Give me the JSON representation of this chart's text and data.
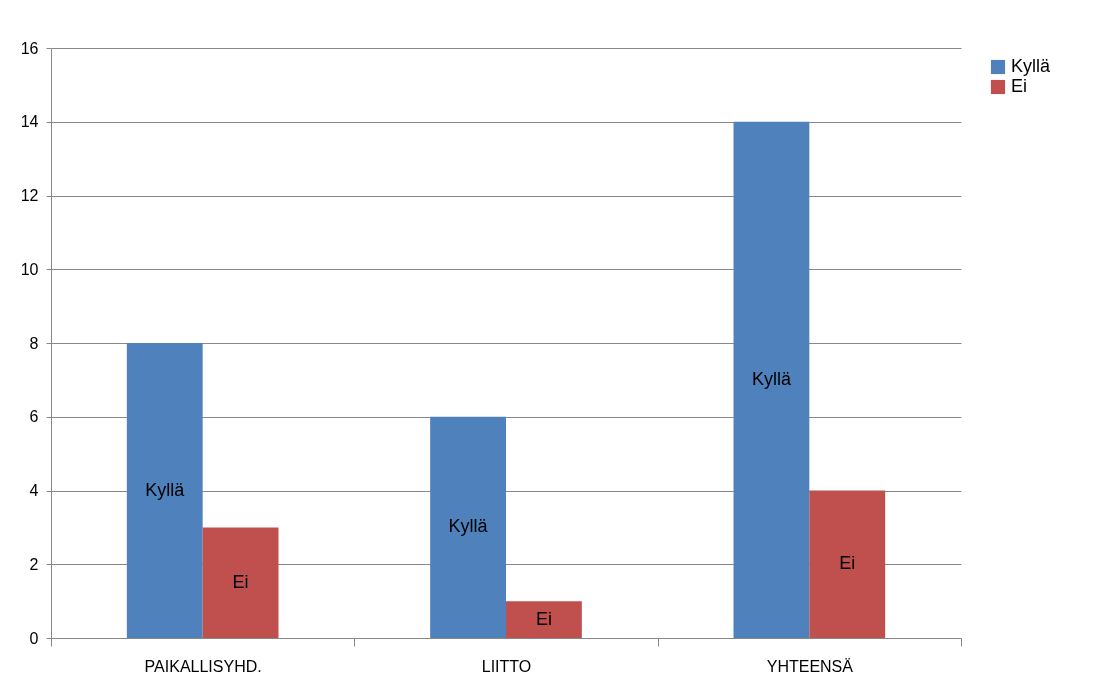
{
  "chart_data": {
    "type": "bar",
    "categories": [
      "PAIKALLISYHD.",
      "LIITTO",
      "YHTEENSÄ"
    ],
    "series": [
      {
        "name": "Kyllä",
        "color": "#4f81bd",
        "values": [
          8,
          6,
          14
        ],
        "value_labels": [
          "Kyllä",
          "Kyllä",
          "Kyllä"
        ]
      },
      {
        "name": "Ei",
        "color": "#c0504d",
        "values": [
          3,
          1,
          4
        ],
        "value_labels": [
          "Ei",
          "Ei",
          "Ei"
        ]
      }
    ],
    "ylim": [
      0,
      16
    ],
    "yticks": [
      0,
      2,
      4,
      6,
      8,
      10,
      12,
      14,
      16
    ],
    "grid": "y",
    "legend": "right"
  }
}
